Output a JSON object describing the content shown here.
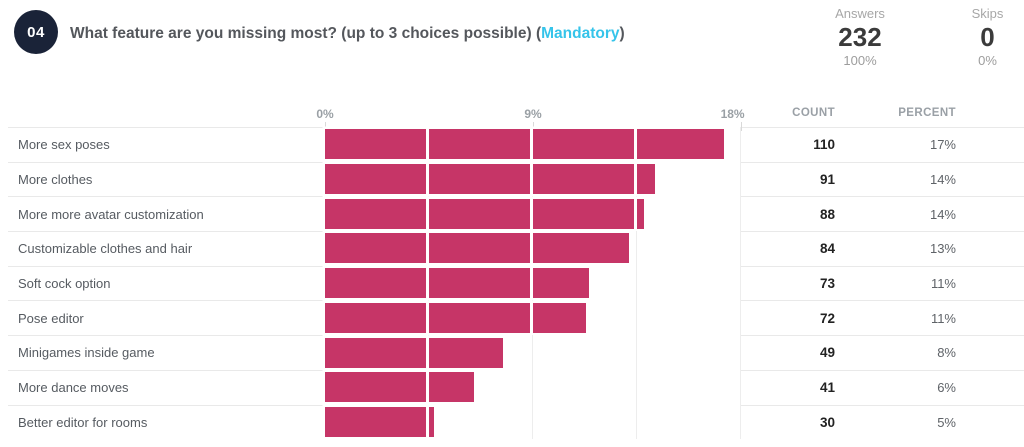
{
  "header": {
    "number": "04",
    "question": "What feature are you missing most? (up to 3 choices possible)",
    "paren_open": " (",
    "mandatory": "Mandatory",
    "paren_close": ")",
    "stats": [
      {
        "label": "Answers",
        "value": "232",
        "percent": "100%"
      },
      {
        "label": "Skips",
        "value": "0",
        "percent": "0%"
      }
    ]
  },
  "chart": {
    "axis_ticks": [
      "0%",
      "9%",
      "18%"
    ],
    "axis_max_percent": 18,
    "columns": {
      "count": "COUNT",
      "percent": "PERCENT"
    },
    "bar_color": "#c63567",
    "rows": [
      {
        "label": "More sex poses",
        "count": 110,
        "percent": "17%"
      },
      {
        "label": "More clothes",
        "count": 91,
        "percent": "14%"
      },
      {
        "label": "More more avatar customization",
        "count": 88,
        "percent": "14%"
      },
      {
        "label": "Customizable clothes and hair",
        "count": 84,
        "percent": "13%"
      },
      {
        "label": "Soft cock option",
        "count": 73,
        "percent": "11%"
      },
      {
        "label": "Pose editor",
        "count": 72,
        "percent": "11%"
      },
      {
        "label": "Minigames inside game",
        "count": 49,
        "percent": "8%"
      },
      {
        "label": "More dance moves",
        "count": 41,
        "percent": "6%"
      },
      {
        "label": "Better editor for rooms",
        "count": 30,
        "percent": "5%"
      }
    ]
  },
  "chart_data": {
    "type": "bar",
    "orientation": "horizontal",
    "title": "What feature are you missing most? (up to 3 choices possible) (Mandatory)",
    "categories": [
      "More sex poses",
      "More clothes",
      "More more avatar customization",
      "Customizable clothes and hair",
      "Soft cock option",
      "Pose editor",
      "Minigames inside game",
      "More dance moves",
      "Better editor for rooms"
    ],
    "values": [
      110,
      91,
      88,
      84,
      73,
      72,
      49,
      41,
      30
    ],
    "percent_labels": [
      "17%",
      "14%",
      "14%",
      "13%",
      "11%",
      "11%",
      "8%",
      "6%",
      "5%"
    ],
    "xlabel": "",
    "ylabel": "",
    "xlim": [
      0,
      18
    ],
    "x_tick_labels": [
      "0%",
      "9%",
      "18%"
    ],
    "grid": "vertical-light",
    "bar_color": "#c63567",
    "total_answers": 232
  }
}
